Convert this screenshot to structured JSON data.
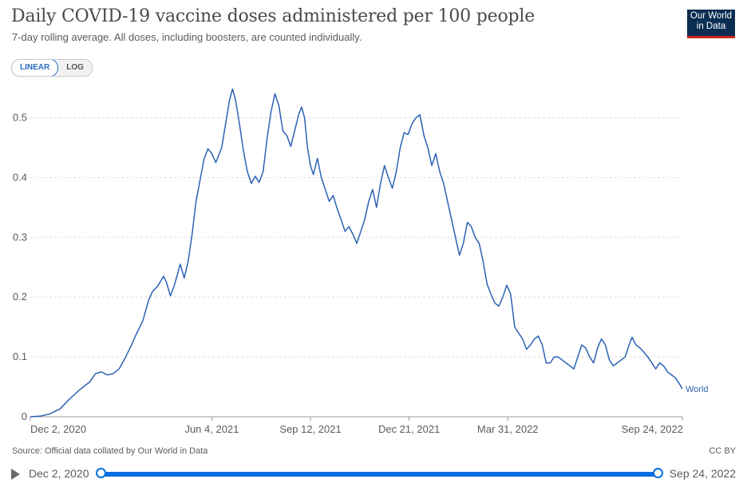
{
  "header": {
    "title": "Daily COVID-19 vaccine doses administered per 100 people",
    "subtitle": "7-day rolling average. All doses, including boosters, are counted individually.",
    "logo_line1": "Our World",
    "logo_line2": "in Data"
  },
  "scale_toggle": {
    "linear": "LINEAR",
    "log": "LOG",
    "selected": "LINEAR"
  },
  "footer": {
    "source": "Source: Official data collated by Our World in Data",
    "license": "CC BY"
  },
  "timeline": {
    "start": "Dec 2, 2020",
    "end": "Sep 24, 2022"
  },
  "colors": {
    "series": "#2c62b4",
    "grid": "#dddddd",
    "accent": "#0a6fe0",
    "logo_bg": "#0b2d52",
    "logo_bar": "#ce261e"
  },
  "chart_data": {
    "type": "line",
    "title": "Daily COVID-19 vaccine doses administered per 100 people",
    "subtitle": "7-day rolling average. All doses, including boosters, are counted individually.",
    "xlabel": "",
    "ylabel": "",
    "x_range": [
      "2020-12-02",
      "2022-09-24"
    ],
    "ylim": [
      0,
      0.55
    ],
    "y_ticks": [
      "0",
      "0.1",
      "0.2",
      "0.3",
      "0.4",
      "0.5"
    ],
    "x_ticks": [
      {
        "date": "2020-12-02",
        "label": "Dec 2, 2020"
      },
      {
        "date": "2021-06-04",
        "label": "Jun 4, 2021"
      },
      {
        "date": "2021-09-12",
        "label": "Sep 12, 2021"
      },
      {
        "date": "2021-12-21",
        "label": "Dec 21, 2021"
      },
      {
        "date": "2022-03-31",
        "label": "Mar 31, 2022"
      },
      {
        "date": "2022-09-24",
        "label": "Sep 24, 2022"
      }
    ],
    "grid": "horizontal dashed",
    "series": [
      {
        "name": "World",
        "points": [
          [
            "2020-12-02",
            0
          ],
          [
            "2020-12-12",
            0.001
          ],
          [
            "2020-12-22",
            0.005
          ],
          [
            "2021-01-01",
            0.013
          ],
          [
            "2021-01-11",
            0.03
          ],
          [
            "2021-01-21",
            0.045
          ],
          [
            "2021-01-31",
            0.058
          ],
          [
            "2021-02-06",
            0.072
          ],
          [
            "2021-02-12",
            0.075
          ],
          [
            "2021-02-18",
            0.07
          ],
          [
            "2021-02-24",
            0.072
          ],
          [
            "2021-03-02",
            0.08
          ],
          [
            "2021-03-08",
            0.098
          ],
          [
            "2021-03-14",
            0.118
          ],
          [
            "2021-03-20",
            0.14
          ],
          [
            "2021-03-26",
            0.16
          ],
          [
            "2021-04-01",
            0.195
          ],
          [
            "2021-04-05",
            0.21
          ],
          [
            "2021-04-10",
            0.218
          ],
          [
            "2021-04-16",
            0.235
          ],
          [
            "2021-04-19",
            0.225
          ],
          [
            "2021-04-23",
            0.202
          ],
          [
            "2021-04-27",
            0.22
          ],
          [
            "2021-05-03",
            0.255
          ],
          [
            "2021-05-07",
            0.232
          ],
          [
            "2021-05-11",
            0.26
          ],
          [
            "2021-05-15",
            0.305
          ],
          [
            "2021-05-19",
            0.36
          ],
          [
            "2021-05-23",
            0.395
          ],
          [
            "2021-05-27",
            0.43
          ],
          [
            "2021-05-31",
            0.448
          ],
          [
            "2021-06-04",
            0.44
          ],
          [
            "2021-06-08",
            0.425
          ],
          [
            "2021-06-14",
            0.45
          ],
          [
            "2021-06-18",
            0.49
          ],
          [
            "2021-06-22",
            0.53
          ],
          [
            "2021-06-25",
            0.548
          ],
          [
            "2021-06-28",
            0.53
          ],
          [
            "2021-07-02",
            0.49
          ],
          [
            "2021-07-06",
            0.445
          ],
          [
            "2021-07-10",
            0.41
          ],
          [
            "2021-07-14",
            0.39
          ],
          [
            "2021-07-18",
            0.402
          ],
          [
            "2021-07-22",
            0.392
          ],
          [
            "2021-07-26",
            0.41
          ],
          [
            "2021-07-30",
            0.465
          ],
          [
            "2021-08-03",
            0.51
          ],
          [
            "2021-08-07",
            0.54
          ],
          [
            "2021-08-11",
            0.52
          ],
          [
            "2021-08-15",
            0.478
          ],
          [
            "2021-08-19",
            0.47
          ],
          [
            "2021-08-23",
            0.452
          ],
          [
            "2021-08-27",
            0.478
          ],
          [
            "2021-08-31",
            0.505
          ],
          [
            "2021-09-03",
            0.518
          ],
          [
            "2021-09-06",
            0.5
          ],
          [
            "2021-09-09",
            0.45
          ],
          [
            "2021-09-12",
            0.42
          ],
          [
            "2021-09-15",
            0.405
          ],
          [
            "2021-09-19",
            0.432
          ],
          [
            "2021-09-23",
            0.4
          ],
          [
            "2021-09-27",
            0.38
          ],
          [
            "2021-10-01",
            0.36
          ],
          [
            "2021-10-05",
            0.37
          ],
          [
            "2021-10-09",
            0.348
          ],
          [
            "2021-10-13",
            0.33
          ],
          [
            "2021-10-17",
            0.31
          ],
          [
            "2021-10-21",
            0.318
          ],
          [
            "2021-10-25",
            0.305
          ],
          [
            "2021-10-29",
            0.29
          ],
          [
            "2021-11-02",
            0.31
          ],
          [
            "2021-11-06",
            0.33
          ],
          [
            "2021-11-10",
            0.36
          ],
          [
            "2021-11-14",
            0.38
          ],
          [
            "2021-11-18",
            0.35
          ],
          [
            "2021-11-22",
            0.39
          ],
          [
            "2021-11-26",
            0.42
          ],
          [
            "2021-11-30",
            0.4
          ],
          [
            "2021-12-04",
            0.382
          ],
          [
            "2021-12-08",
            0.41
          ],
          [
            "2021-12-12",
            0.45
          ],
          [
            "2021-12-16",
            0.475
          ],
          [
            "2021-12-20",
            0.472
          ],
          [
            "2021-12-24",
            0.49
          ],
          [
            "2021-12-28",
            0.5
          ],
          [
            "2022-01-01",
            0.505
          ],
          [
            "2022-01-05",
            0.47
          ],
          [
            "2022-01-09",
            0.45
          ],
          [
            "2022-01-13",
            0.42
          ],
          [
            "2022-01-17",
            0.44
          ],
          [
            "2022-01-21",
            0.41
          ],
          [
            "2022-01-25",
            0.39
          ],
          [
            "2022-01-29",
            0.36
          ],
          [
            "2022-02-02",
            0.33
          ],
          [
            "2022-02-06",
            0.3
          ],
          [
            "2022-02-10",
            0.27
          ],
          [
            "2022-02-14",
            0.29
          ],
          [
            "2022-02-18",
            0.325
          ],
          [
            "2022-02-22",
            0.318
          ],
          [
            "2022-02-26",
            0.3
          ],
          [
            "2022-03-02",
            0.29
          ],
          [
            "2022-03-06",
            0.26
          ],
          [
            "2022-03-10",
            0.222
          ],
          [
            "2022-03-14",
            0.205
          ],
          [
            "2022-03-18",
            0.19
          ],
          [
            "2022-03-22",
            0.185
          ],
          [
            "2022-03-26",
            0.2
          ],
          [
            "2022-03-30",
            0.22
          ],
          [
            "2022-04-03",
            0.205
          ],
          [
            "2022-04-07",
            0.15
          ],
          [
            "2022-04-11",
            0.14
          ],
          [
            "2022-04-15",
            0.13
          ],
          [
            "2022-04-19",
            0.113
          ],
          [
            "2022-04-23",
            0.12
          ],
          [
            "2022-04-27",
            0.13
          ],
          [
            "2022-05-01",
            0.135
          ],
          [
            "2022-05-05",
            0.12
          ],
          [
            "2022-05-09",
            0.09
          ],
          [
            "2022-05-13",
            0.09
          ],
          [
            "2022-05-17",
            0.1
          ],
          [
            "2022-05-21",
            0.1
          ],
          [
            "2022-05-25",
            0.095
          ],
          [
            "2022-05-29",
            0.09
          ],
          [
            "2022-06-02",
            0.085
          ],
          [
            "2022-06-06",
            0.08
          ],
          [
            "2022-06-10",
            0.1
          ],
          [
            "2022-06-14",
            0.12
          ],
          [
            "2022-06-18",
            0.115
          ],
          [
            "2022-06-22",
            0.1
          ],
          [
            "2022-06-26",
            0.09
          ],
          [
            "2022-06-30",
            0.115
          ],
          [
            "2022-07-04",
            0.13
          ],
          [
            "2022-07-08",
            0.12
          ],
          [
            "2022-07-12",
            0.095
          ],
          [
            "2022-07-16",
            0.085
          ],
          [
            "2022-07-20",
            0.09
          ],
          [
            "2022-07-24",
            0.095
          ],
          [
            "2022-07-28",
            0.1
          ],
          [
            "2022-08-01",
            0.12
          ],
          [
            "2022-08-04",
            0.133
          ],
          [
            "2022-08-08",
            0.12
          ],
          [
            "2022-08-12",
            0.115
          ],
          [
            "2022-08-16",
            0.108
          ],
          [
            "2022-08-20",
            0.1
          ],
          [
            "2022-08-24",
            0.09
          ],
          [
            "2022-08-28",
            0.08
          ],
          [
            "2022-09-01",
            0.09
          ],
          [
            "2022-09-05",
            0.085
          ],
          [
            "2022-09-09",
            0.075
          ],
          [
            "2022-09-13",
            0.07
          ],
          [
            "2022-09-17",
            0.065
          ],
          [
            "2022-09-21",
            0.055
          ],
          [
            "2022-09-24",
            0.047
          ]
        ]
      }
    ]
  }
}
